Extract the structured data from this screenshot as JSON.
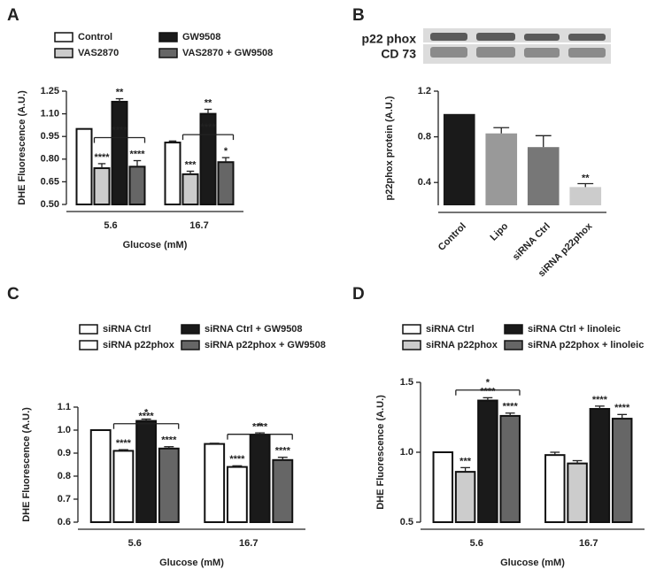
{
  "chart_data": [
    {
      "type": "bar",
      "panel_label": "A",
      "categories": [
        "5.6",
        "16.7"
      ],
      "xlabel": "Glucose (mM)",
      "ylabel": "DHE Fluorescence (A.U.)",
      "ylim": [
        0.5,
        1.25
      ],
      "yticks": [
        {
          "value": 0.5,
          "label": "0.50"
        },
        0.65,
        {
          "value": 0.8,
          "label": "0.80"
        },
        0.95,
        {
          "value": 1.1,
          "label": "1.10"
        },
        1.25
      ],
      "series": [
        {
          "name": "Control",
          "color": "#ffffff",
          "values": [
            1.0,
            0.91
          ],
          "errors": [
            0,
            0.01
          ],
          "annotations": [
            null,
            null
          ]
        },
        {
          "name": "VAS2870",
          "color": "#cccccc",
          "values": [
            0.74,
            0.7
          ],
          "errors": [
            0.03,
            0.02
          ],
          "annotations": [
            "****",
            "***"
          ]
        },
        {
          "name": "GW9508",
          "color": "#1a1a1a",
          "values": [
            1.18,
            1.1
          ],
          "errors": [
            0.02,
            0.03
          ],
          "annotations": [
            "**",
            "**"
          ]
        },
        {
          "name": "VAS2870 + GW9508",
          "color": "#666666",
          "values": [
            0.75,
            0.78
          ],
          "errors": [
            0.04,
            0.03
          ],
          "annotations": [
            "****",
            "*"
          ]
        }
      ],
      "brackets": [
        "****",
        "****"
      ]
    },
    {
      "type": "bar",
      "panel_label": "B",
      "blot_labels": [
        "p22 phox",
        "CD 73"
      ],
      "ylabel": "p22phox protein (A.U.)",
      "categories": [
        "Control",
        "Lipo",
        "siRNA Ctrl",
        "siRNA p22phox"
      ],
      "ylim": [
        0.2,
        1.2
      ],
      "yticks": [
        0.4,
        0.8,
        1.2
      ],
      "series": [
        {
          "colors": [
            "#1a1a1a",
            "#999999",
            "#777777",
            "#cccccc"
          ],
          "values": [
            1.0,
            0.83,
            0.71,
            0.36
          ],
          "errors": [
            0,
            0.05,
            0.1,
            0.03
          ],
          "annotations": [
            null,
            null,
            null,
            "**"
          ]
        }
      ]
    },
    {
      "type": "bar",
      "panel_label": "C",
      "categories": [
        "5.6",
        "16.7"
      ],
      "xlabel": "Glucose (mM)",
      "ylabel": "DHE Fluorescence (A.U.)",
      "ylim": [
        0.6,
        1.1
      ],
      "yticks": [
        0.6,
        0.7,
        0.8,
        0.9,
        {
          "value": 1.0,
          "label": "1.0"
        },
        1.1
      ],
      "series": [
        {
          "name": "siRNA Ctrl",
          "color": "#ffffff",
          "values": [
            1.0,
            0.94
          ],
          "errors": [
            0,
            0.003
          ],
          "annotations": [
            null,
            null
          ]
        },
        {
          "name": "siRNA p22phox",
          "color": "#ffffff",
          "values": [
            0.91,
            0.84
          ],
          "errors": [
            0.005,
            0.005
          ],
          "annotations": [
            "****",
            "****"
          ]
        },
        {
          "name": "siRNA Ctrl + GW9508",
          "color": "#1a1a1a",
          "values": [
            1.04,
            0.98
          ],
          "errors": [
            0.008,
            0.008
          ],
          "annotations": [
            "*",
            "*"
          ]
        },
        {
          "name": "siRNA p22phox + GW9508",
          "color": "#666666",
          "values": [
            0.92,
            0.87
          ],
          "errors": [
            0.008,
            0.012
          ],
          "annotations": [
            "****",
            "****"
          ]
        }
      ],
      "brackets": [
        "****",
        "****"
      ]
    },
    {
      "type": "bar",
      "panel_label": "D",
      "categories": [
        "5.6",
        "16.7"
      ],
      "xlabel": "Glucose (mM)",
      "ylabel": "DHE Fluorescence (A.U.)",
      "ylim": [
        0.5,
        1.5
      ],
      "yticks": [
        0.5,
        {
          "value": 1.0,
          "label": "1.0"
        },
        1.5
      ],
      "series": [
        {
          "name": "siRNA Ctrl",
          "color": "#ffffff",
          "values": [
            1.0,
            0.98
          ],
          "errors": [
            0,
            0.02
          ],
          "annotations": [
            null,
            null
          ]
        },
        {
          "name": "siRNA p22phox",
          "color": "#cccccc",
          "values": [
            0.86,
            0.92
          ],
          "errors": [
            0.03,
            0.02
          ],
          "annotations": [
            "***",
            null
          ]
        },
        {
          "name": "siRNA Ctrl + linoleic",
          "color": "#1a1a1a",
          "values": [
            1.37,
            1.31
          ],
          "errors": [
            0.02,
            0.02
          ],
          "annotations": [
            "****",
            "****"
          ]
        },
        {
          "name": "siRNA p22phox + linoleic",
          "color": "#666666",
          "values": [
            1.26,
            1.24
          ],
          "errors": [
            0.02,
            0.03
          ],
          "annotations": [
            "****",
            "****"
          ]
        }
      ],
      "brackets": [
        "*",
        null
      ]
    }
  ]
}
